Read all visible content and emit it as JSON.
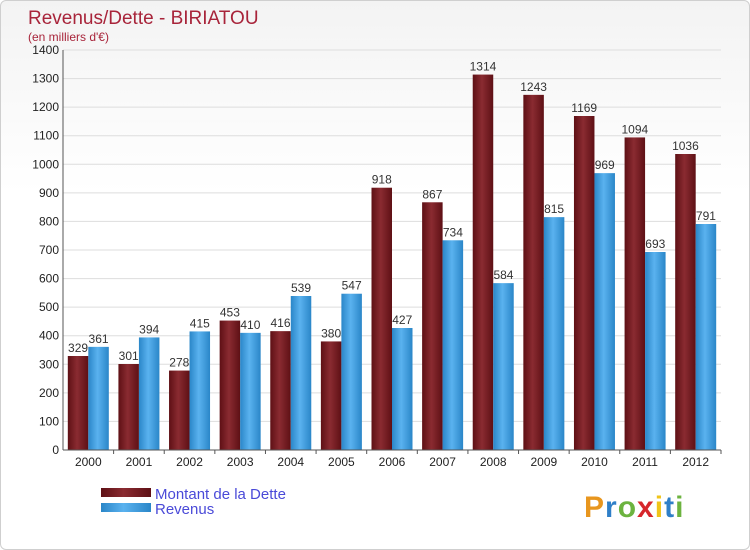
{
  "chart_data": {
    "type": "bar",
    "title": "Revenus/Dette - BIRIATOU",
    "subtitle": "(en milliers d'€)",
    "categories": [
      "2000",
      "2001",
      "2002",
      "2003",
      "2004",
      "2005",
      "2006",
      "2007",
      "2008",
      "2009",
      "2010",
      "2011",
      "2012"
    ],
    "series": [
      {
        "name": "Montant de la Dette",
        "values": [
          329,
          301,
          278,
          453,
          416,
          380,
          918,
          867,
          1314,
          1243,
          1169,
          1094,
          1036
        ],
        "color": "#7a1f24"
      },
      {
        "name": "Revenus",
        "values": [
          361,
          394,
          415,
          410,
          539,
          547,
          427,
          734,
          584,
          815,
          969,
          693,
          791
        ],
        "color": "#3d9fe0"
      }
    ],
    "ylim": [
      0,
      1400
    ],
    "yticks": [
      0,
      100,
      200,
      300,
      400,
      500,
      600,
      700,
      800,
      900,
      1000,
      1100,
      1200,
      1300,
      1400
    ],
    "grid": true,
    "legend_position": "bottom-left"
  },
  "logo": {
    "letters": [
      "P",
      "r",
      "o",
      "x",
      "i",
      "t",
      "i"
    ],
    "colors": [
      "#e8961e",
      "#2f7fc8",
      "#6cb33f",
      "#d6262b",
      "#f0c419",
      "#2f7fc8",
      "#6cb33f"
    ]
  },
  "colors": {
    "title": "#a8243a",
    "grid": "#dddddd",
    "axis": "#555555",
    "legend_text": "#4a4ad8"
  }
}
